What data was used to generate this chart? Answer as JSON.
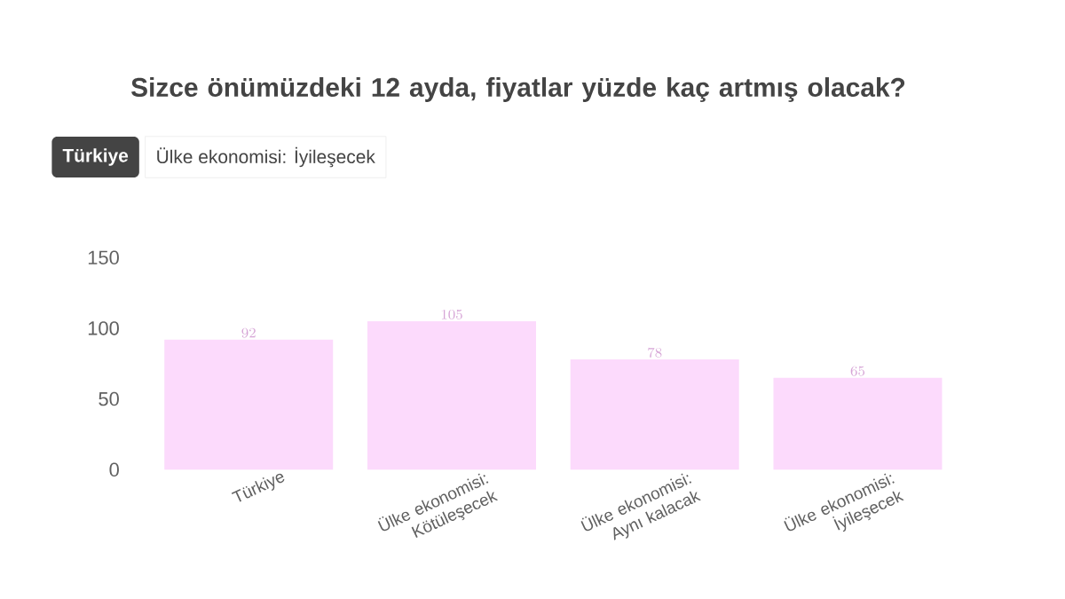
{
  "chart_data": {
    "type": "bar",
    "title": "Sizce önümüzdeki 12 ayda, fiyatlar yüzde kaç artmış olacak?",
    "annotations": [
      "Türkiye",
      "Ülke ekonomisi: İyileşecek"
    ],
    "categories": [
      "Türkiye",
      "Ülke ekonomisi: Kötüleşecek",
      "Ülke ekonomisi: Aynı kalacak",
      "Ülke ekonomisi: İyileşecek"
    ],
    "values": [
      92,
      105,
      78,
      65
    ],
    "color": "#fcdafc",
    "data_labels": true,
    "ylim": [
      0,
      150
    ],
    "yticks": [
      0,
      50,
      100,
      150
    ],
    "grid": false
  }
}
